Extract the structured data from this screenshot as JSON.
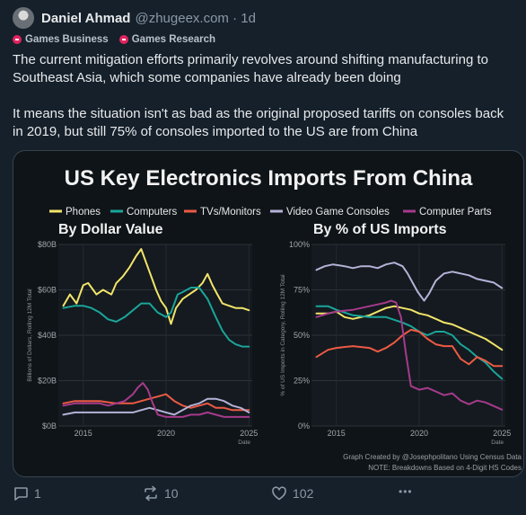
{
  "post": {
    "author": "Daniel Ahmad",
    "handle": "@zhugeex.com · 1d",
    "tags": [
      "Games Business",
      "Games Research"
    ],
    "paragraphs": [
      "The current mitigation efforts primarily revolves around shifting manufacturing to Southeast Asia, which some companies have already been doing",
      "It means the situation isn't as bad as the original proposed tariffs on consoles back in 2019, but still 75% of consoles imported to the US are from China"
    ]
  },
  "actions": {
    "replies": "1",
    "reposts": "10",
    "likes": "102",
    "more": "•••"
  },
  "figure": {
    "title": "US Key Electronics Imports From China",
    "credit": "Graph Created by @Josephpolitano Using Census Data",
    "note": "NOTE: Breakdowns Based on 4-Digit HS Codes",
    "colors": {
      "Phones": "#f2e46a",
      "Computers": "#1aa59a",
      "TVs/Monitors": "#ec5a44",
      "Video Game Consoles": "#b5b2d8",
      "Computer Parts": "#a63a8c"
    }
  },
  "chart_data": [
    {
      "type": "line",
      "title": "By Dollar Value",
      "ylabel": "Billions of Dollars, Rolling 12M Total",
      "xlabel": "Date",
      "x_ticks": [
        "2015",
        "2020",
        "2025"
      ],
      "y_ticks": [
        "$0B",
        "$20B",
        "$40B",
        "$60B",
        "$80B"
      ],
      "xlim": [
        2013.5,
        2025.2
      ],
      "ylim": [
        0,
        80
      ],
      "series": [
        {
          "name": "Phones",
          "x": [
            2013.8,
            2014.2,
            2014.6,
            2015,
            2015.3,
            2015.8,
            2016.2,
            2016.7,
            2017,
            2017.4,
            2017.8,
            2018.2,
            2018.5,
            2018.8,
            2019.1,
            2019.4,
            2019.7,
            2020,
            2020.3,
            2020.6,
            2021,
            2021.4,
            2021.8,
            2022.2,
            2022.5,
            2022.8,
            2023.1,
            2023.4,
            2023.8,
            2024.2,
            2024.6,
            2025
          ],
          "values": [
            53,
            58,
            54,
            62,
            63,
            58,
            60,
            58,
            63,
            66,
            70,
            75,
            78,
            72,
            66,
            60,
            55,
            52,
            45,
            52,
            56,
            58,
            60,
            63,
            67,
            62,
            58,
            54,
            53,
            52,
            52,
            51
          ]
        },
        {
          "name": "Computers",
          "x": [
            2013.8,
            2014.5,
            2015,
            2015.5,
            2016,
            2016.5,
            2017,
            2017.5,
            2018,
            2018.5,
            2019,
            2019.5,
            2020,
            2020.3,
            2020.7,
            2021,
            2021.5,
            2022,
            2022.5,
            2023,
            2023.4,
            2023.8,
            2024.2,
            2024.6,
            2025
          ],
          "values": [
            52,
            53,
            53,
            52,
            50,
            47,
            46,
            48,
            51,
            54,
            54,
            50,
            48,
            50,
            58,
            59,
            61,
            61,
            56,
            48,
            42,
            38,
            36,
            35,
            35
          ]
        },
        {
          "name": "TVs/Monitors",
          "x": [
            2013.8,
            2014.5,
            2015,
            2016,
            2017,
            2018,
            2018.5,
            2019,
            2019.5,
            2020,
            2020.5,
            2021,
            2021.5,
            2022,
            2022.5,
            2023,
            2023.5,
            2024,
            2024.5,
            2025
          ],
          "values": [
            10,
            11,
            11,
            11,
            10,
            10,
            11,
            12,
            13,
            14,
            11,
            9,
            8,
            9,
            10,
            8,
            8,
            7,
            7,
            7
          ]
        },
        {
          "name": "Video Game Consoles",
          "x": [
            2013.8,
            2014.5,
            2015,
            2016,
            2017,
            2018,
            2018.5,
            2019,
            2019.5,
            2020,
            2020.5,
            2021,
            2021.5,
            2022,
            2022.5,
            2023,
            2023.5,
            2024,
            2024.5,
            2025
          ],
          "values": [
            5,
            6,
            6,
            6,
            6,
            6,
            7,
            8,
            7,
            6,
            5,
            7,
            9,
            10,
            12,
            12,
            11,
            9,
            8,
            6
          ]
        },
        {
          "name": "Computer Parts",
          "x": [
            2013.8,
            2014.5,
            2015,
            2016,
            2016.5,
            2017,
            2017.5,
            2018,
            2018.3,
            2018.6,
            2018.9,
            2019.2,
            2019.5,
            2020,
            2020.5,
            2021,
            2021.5,
            2022,
            2022.5,
            2023,
            2023.5,
            2024,
            2024.5,
            2025
          ],
          "values": [
            9,
            10,
            10,
            10,
            9,
            10,
            11,
            14,
            17,
            19,
            16,
            10,
            5,
            4,
            4,
            4,
            5,
            5,
            6,
            5,
            4,
            4,
            4,
            4
          ]
        }
      ]
    },
    {
      "type": "line",
      "title": "By % of US Imports",
      "ylabel": "% of US Imports in Category, Rolling 12M Total",
      "xlabel": "Date",
      "x_ticks": [
        "2015",
        "2020",
        "2025"
      ],
      "y_ticks": [
        "0%",
        "25%",
        "50%",
        "75%",
        "100%"
      ],
      "xlim": [
        2013.5,
        2025.2
      ],
      "ylim": [
        0,
        100
      ],
      "series": [
        {
          "name": "Phones",
          "x": [
            2013.8,
            2014.5,
            2015,
            2015.5,
            2016,
            2016.5,
            2017,
            2017.5,
            2018,
            2018.5,
            2019,
            2019.5,
            2020,
            2020.5,
            2021,
            2021.5,
            2022,
            2022.5,
            2023,
            2023.5,
            2024,
            2024.5,
            2025
          ],
          "values": [
            62,
            62,
            63,
            60,
            59,
            60,
            61,
            63,
            65,
            66,
            65,
            64,
            62,
            61,
            59,
            57,
            56,
            54,
            52,
            50,
            48,
            45,
            42
          ]
        },
        {
          "name": "Computers",
          "x": [
            2013.8,
            2014.5,
            2015,
            2016,
            2017,
            2018,
            2019,
            2019.5,
            2020,
            2020.5,
            2021,
            2021.5,
            2022,
            2022.5,
            2023,
            2023.5,
            2024,
            2024.5,
            2025
          ],
          "values": [
            66,
            66,
            64,
            61,
            60,
            60,
            57,
            55,
            52,
            50,
            52,
            52,
            50,
            45,
            42,
            38,
            35,
            30,
            26
          ]
        },
        {
          "name": "TVs/Monitors",
          "x": [
            2013.8,
            2014.5,
            2015,
            2016,
            2017,
            2017.5,
            2018,
            2018.5,
            2019,
            2019.5,
            2020,
            2020.5,
            2021,
            2021.5,
            2022,
            2022.5,
            2023,
            2023.5,
            2024,
            2024.5,
            2025
          ],
          "values": [
            38,
            42,
            43,
            44,
            43,
            41,
            43,
            46,
            50,
            53,
            52,
            48,
            45,
            44,
            44,
            37,
            34,
            38,
            36,
            33,
            33
          ]
        },
        {
          "name": "Video Game Consoles",
          "x": [
            2013.8,
            2014.3,
            2014.8,
            2015.5,
            2016,
            2016.5,
            2017,
            2017.5,
            2018,
            2018.5,
            2019,
            2019.3,
            2019.6,
            2019.9,
            2020.3,
            2020.6,
            2021,
            2021.5,
            2022,
            2022.5,
            2023,
            2023.5,
            2024,
            2024.5,
            2025
          ],
          "values": [
            86,
            88,
            89,
            88,
            87,
            88,
            88,
            87,
            89,
            90,
            88,
            84,
            79,
            74,
            69,
            73,
            80,
            84,
            85,
            84,
            83,
            81,
            80,
            79,
            76
          ]
        },
        {
          "name": "Computer Parts",
          "x": [
            2013.8,
            2014.5,
            2015,
            2016,
            2017,
            2017.5,
            2018,
            2018.3,
            2018.6,
            2018.9,
            2019.2,
            2019.5,
            2020,
            2020.5,
            2021,
            2021.5,
            2022,
            2022.5,
            2023,
            2023.5,
            2024,
            2024.5,
            2025
          ],
          "values": [
            60,
            62,
            63,
            64,
            66,
            67,
            68,
            69,
            68,
            60,
            40,
            22,
            20,
            21,
            19,
            17,
            18,
            14,
            12,
            14,
            13,
            11,
            9
          ]
        }
      ]
    }
  ]
}
